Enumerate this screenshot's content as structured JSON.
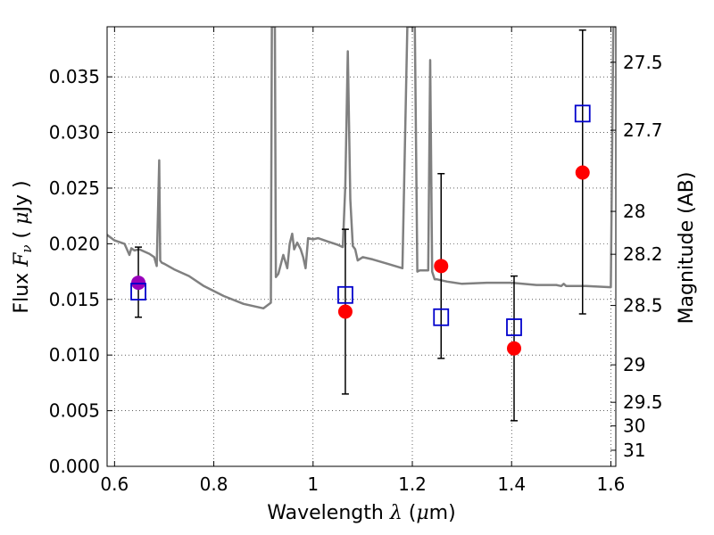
{
  "chart_data": {
    "type": "scatter",
    "xlabel": {
      "text": "Wavelength",
      "symbol": "λ",
      "unit_open": "(",
      "unit_mu": "μ",
      "unit_rest": "m)"
    },
    "ylabel": {
      "text": "Flux",
      "symbol": "F",
      "subscript": "ν",
      "unit_open": "(",
      "unit_mu": "μ",
      "unit_rest": "Jy",
      "unit_close": ")"
    },
    "y2label": "Magnitude (AB)",
    "xlim": [
      0.585,
      1.61
    ],
    "ylim": [
      0.0,
      0.0395
    ],
    "grid": true,
    "x_ticks": [
      {
        "v": 0.6,
        "label": "0.6"
      },
      {
        "v": 0.8,
        "label": "0.8"
      },
      {
        "v": 1.0,
        "label": "1"
      },
      {
        "v": 1.2,
        "label": "1.2"
      },
      {
        "v": 1.4,
        "label": "1.4"
      },
      {
        "v": 1.6,
        "label": "1.6"
      }
    ],
    "y_ticks": [
      {
        "v": 0.0,
        "label": "0.000"
      },
      {
        "v": 0.005,
        "label": "0.005"
      },
      {
        "v": 0.01,
        "label": "0.010"
      },
      {
        "v": 0.015,
        "label": "0.015"
      },
      {
        "v": 0.02,
        "label": "0.020"
      },
      {
        "v": 0.025,
        "label": "0.025"
      },
      {
        "v": 0.03,
        "label": "0.030"
      },
      {
        "v": 0.035,
        "label": "0.035"
      }
    ],
    "y2_ticks": [
      {
        "v": 27.5,
        "label": "27.5"
      },
      {
        "v": 27.7,
        "label": "27.7"
      },
      {
        "v": 28,
        "label": "28"
      },
      {
        "v": 28.2,
        "label": "28.2"
      },
      {
        "v": 28.5,
        "label": "28.5"
      },
      {
        "v": 29,
        "label": "29"
      },
      {
        "v": 29.5,
        "label": "29.5"
      },
      {
        "v": 30,
        "label": "30"
      },
      {
        "v": 31,
        "label": "31"
      }
    ],
    "model_spectrum": {
      "color": "#808080",
      "x": [
        0.585,
        0.6,
        0.62,
        0.63,
        0.634,
        0.64,
        0.65,
        0.66,
        0.67,
        0.68,
        0.685,
        0.69,
        0.692,
        0.695,
        0.7,
        0.72,
        0.75,
        0.78,
        0.82,
        0.86,
        0.9,
        0.915,
        0.917,
        0.919,
        0.921,
        0.923,
        0.925,
        0.93,
        0.94,
        0.948,
        0.953,
        0.958,
        0.962,
        0.968,
        0.975,
        0.98,
        0.985,
        0.99,
        1.0,
        1.01,
        1.03,
        1.05,
        1.06,
        1.065,
        1.07,
        1.075,
        1.08,
        1.085,
        1.09,
        1.1,
        1.12,
        1.15,
        1.18,
        1.19,
        1.195,
        1.2,
        1.205,
        1.21,
        1.215,
        1.22,
        1.228,
        1.232,
        1.236,
        1.24,
        1.245,
        1.25,
        1.27,
        1.3,
        1.35,
        1.4,
        1.45,
        1.49,
        1.5,
        1.505,
        1.51,
        1.55,
        1.6,
        1.605,
        1.608,
        1.61
      ],
      "y": [
        0.0208,
        0.0203,
        0.02,
        0.019,
        0.0196,
        0.0194,
        0.0195,
        0.0193,
        0.0191,
        0.0188,
        0.018,
        0.0275,
        0.0185,
        0.0183,
        0.0182,
        0.0177,
        0.0171,
        0.0162,
        0.0153,
        0.0146,
        0.0142,
        0.0147,
        0.0395,
        0.0395,
        0.0395,
        0.0395,
        0.017,
        0.0173,
        0.019,
        0.0178,
        0.02,
        0.0209,
        0.0195,
        0.0201,
        0.0195,
        0.0188,
        0.0178,
        0.0205,
        0.0204,
        0.0205,
        0.0202,
        0.0199,
        0.0197,
        0.0252,
        0.0373,
        0.024,
        0.0198,
        0.0195,
        0.0185,
        0.0188,
        0.0186,
        0.0182,
        0.0178,
        0.0395,
        0.0395,
        0.0395,
        0.0395,
        0.0175,
        0.0176,
        0.0176,
        0.0176,
        0.0176,
        0.0365,
        0.0175,
        0.0168,
        0.0168,
        0.0166,
        0.0164,
        0.0165,
        0.0165,
        0.0163,
        0.0163,
        0.0162,
        0.0164,
        0.0162,
        0.0162,
        0.0161,
        0.0395,
        0.0395,
        0.0395
      ]
    },
    "series": [
      {
        "name": "",
        "marker": "circle",
        "color": "#ff0000",
        "points": [
          {
            "x": 1.065,
            "y": 0.0139
          },
          {
            "x": 1.258,
            "y": 0.018
          },
          {
            "x": 1.405,
            "y": 0.0106
          },
          {
            "x": 1.543,
            "y": 0.0264
          }
        ]
      },
      {
        "name": "",
        "marker": "circle",
        "color": "#9900bb",
        "points": [
          {
            "x": 0.648,
            "y": 0.0165
          }
        ]
      },
      {
        "name": "",
        "marker": "square-open",
        "color": "#0000cc",
        "points": [
          {
            "x": 0.648,
            "y": 0.0157
          },
          {
            "x": 1.065,
            "y": 0.0154
          },
          {
            "x": 1.258,
            "y": 0.0134
          },
          {
            "x": 1.405,
            "y": 0.0125
          },
          {
            "x": 1.543,
            "y": 0.0317
          }
        ]
      }
    ],
    "error_bars": [
      {
        "x": 0.648,
        "low": 0.0134,
        "high": 0.0197
      },
      {
        "x": 1.065,
        "low": 0.0065,
        "high": 0.0213
      },
      {
        "x": 1.258,
        "low": 0.0097,
        "high": 0.0263
      },
      {
        "x": 1.405,
        "low": 0.0041,
        "high": 0.0171
      },
      {
        "x": 1.543,
        "low": 0.0137,
        "high": 0.0392
      }
    ]
  }
}
